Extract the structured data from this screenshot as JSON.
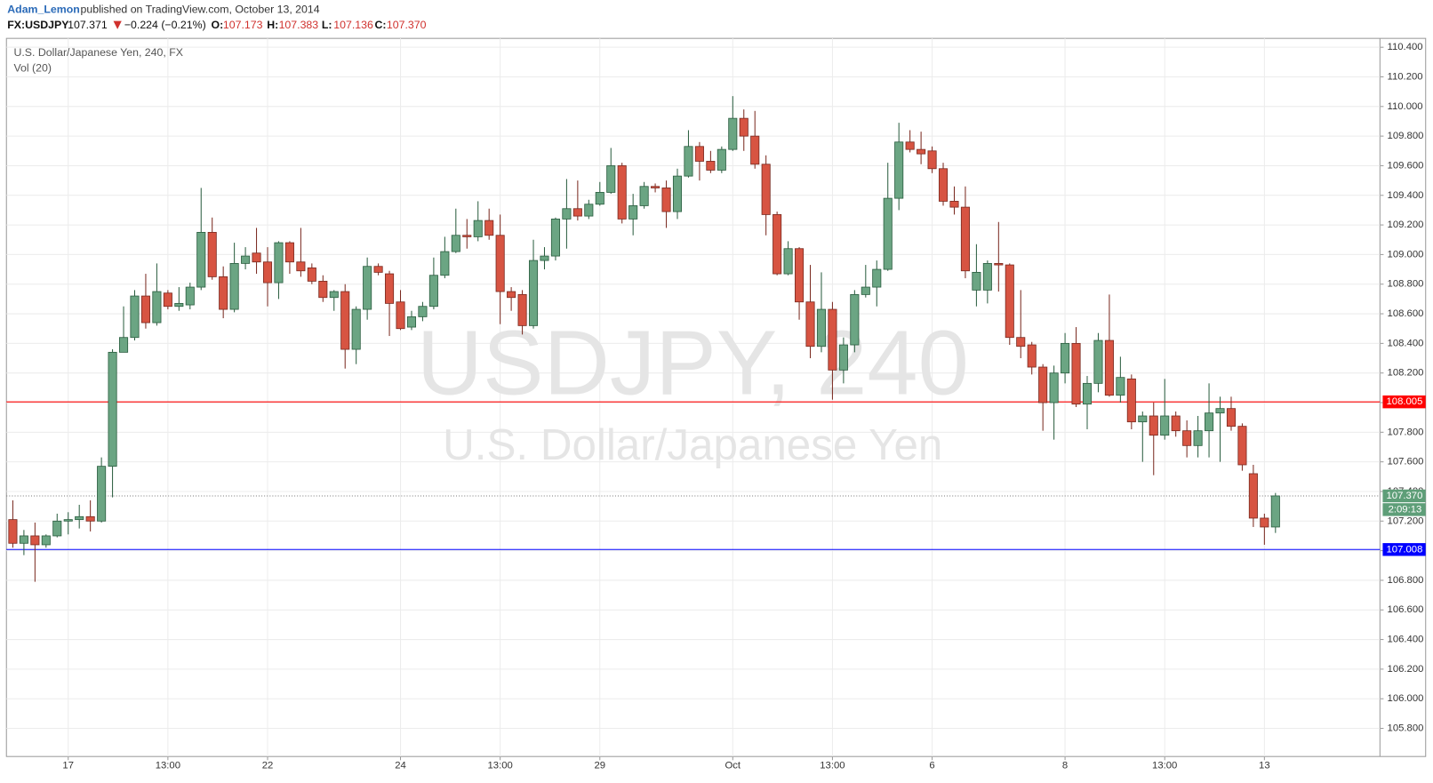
{
  "header": {
    "author": "Adam_Lemon",
    "published": "published on TradingView.com, October 13, 2014",
    "symbol": "FX:USDJPY",
    "last": "107.371",
    "change": "−0.224 (−0.21%)",
    "ohlc": [
      {
        "label": "O:",
        "value": "107.173"
      },
      {
        "label": "H:",
        "value": "107.383"
      },
      {
        "label": "L:",
        "value": "107.136"
      },
      {
        "label": "C:",
        "value": "107.370"
      }
    ]
  },
  "chart_data": {
    "type": "candlestick",
    "title": "U.S. Dollar/Japanese Yen, 240, FX",
    "indicator": "Vol (20)",
    "watermark": [
      "USDJPY, 240",
      "U.S. Dollar/Japanese Yen"
    ],
    "up_color": "#6ba583",
    "down_color": "#d75442",
    "grid": true,
    "categories": [
      null,
      null,
      null,
      null,
      null,
      "17",
      null,
      null,
      null,
      null,
      null,
      null,
      null,
      null,
      "13:00",
      null,
      null,
      null,
      null,
      null,
      null,
      null,
      null,
      "22",
      null,
      null,
      null,
      null,
      null,
      null,
      null,
      null,
      null,
      null,
      null,
      "24",
      null,
      null,
      null,
      null,
      null,
      null,
      null,
      null,
      "13:00",
      null,
      null,
      null,
      null,
      null,
      null,
      null,
      null,
      "29",
      null,
      null,
      null,
      null,
      null,
      null,
      null,
      null,
      null,
      null,
      null,
      "Oct",
      null,
      null,
      null,
      null,
      null,
      null,
      null,
      null,
      "13:00",
      null,
      null,
      null,
      null,
      null,
      null,
      null,
      null,
      "6",
      null,
      null,
      null,
      null,
      null,
      null,
      null,
      null,
      null,
      null,
      null,
      "8",
      null,
      null,
      null,
      null,
      null,
      null,
      null,
      null,
      "13:00",
      null,
      null,
      null,
      null,
      null,
      null,
      null,
      null,
      "13",
      null
    ],
    "open": [
      107.21,
      107.05,
      107.1,
      107.04,
      107.1,
      107.2,
      107.21,
      107.23,
      107.2,
      107.57,
      108.34,
      108.44,
      108.72,
      108.54,
      108.74,
      108.65,
      108.66,
      108.78,
      109.15,
      108.85,
      108.63,
      108.94,
      109.01,
      108.95,
      108.81,
      109.08,
      108.95,
      108.91,
      108.82,
      108.71,
      108.75,
      108.36,
      108.63,
      108.92,
      108.87,
      108.68,
      108.51,
      108.58,
      108.65,
      108.86,
      109.02,
      109.13,
      109.12,
      109.23,
      109.13,
      108.75,
      108.73,
      108.52,
      108.96,
      108.99,
      109.24,
      109.31,
      109.26,
      109.34,
      109.42,
      109.6,
      109.24,
      109.33,
      109.46,
      109.45,
      109.29,
      109.53,
      109.73,
      109.63,
      109.57,
      109.71,
      109.92,
      109.8,
      109.61,
      109.27,
      108.87,
      109.04,
      108.68,
      108.38,
      108.63,
      108.22,
      108.39,
      108.73,
      108.78,
      108.9,
      109.38,
      109.76,
      109.71,
      109.7,
      109.58,
      109.36,
      109.32,
      108.76,
      108.76,
      108.94,
      108.93,
      108.44,
      108.39,
      108.24,
      108.0,
      108.2,
      108.4,
      107.99,
      108.13,
      108.42,
      108.05,
      108.16,
      107.87,
      107.91,
      107.78,
      107.91,
      107.81,
      107.71,
      107.81,
      107.93,
      107.96,
      107.84,
      107.52,
      107.22,
      107.16
    ],
    "high": [
      107.34,
      107.14,
      107.19,
      107.11,
      107.25,
      107.26,
      107.31,
      107.34,
      107.63,
      108.36,
      108.65,
      108.76,
      108.87,
      108.94,
      108.76,
      108.78,
      108.81,
      109.45,
      109.25,
      108.92,
      109.08,
      109.05,
      109.18,
      109.05,
      109.09,
      109.09,
      109.18,
      108.94,
      108.86,
      108.76,
      108.8,
      108.65,
      108.98,
      108.94,
      108.89,
      108.76,
      108.62,
      108.68,
      108.98,
      109.12,
      109.31,
      109.24,
      109.36,
      109.31,
      109.27,
      108.78,
      108.76,
      109.1,
      109.05,
      109.25,
      109.51,
      109.5,
      109.37,
      109.49,
      109.72,
      109.62,
      109.41,
      109.49,
      109.48,
      109.5,
      109.58,
      109.84,
      109.76,
      109.7,
      109.73,
      110.07,
      109.98,
      109.97,
      109.67,
      109.29,
      109.09,
      109.05,
      108.93,
      108.88,
      108.68,
      108.44,
      108.76,
      108.93,
      108.96,
      109.62,
      109.89,
      109.84,
      109.83,
      109.73,
      109.62,
      109.46,
      109.46,
      109.07,
      108.96,
      109.22,
      108.94,
      108.76,
      108.41,
      108.26,
      108.25,
      108.47,
      108.51,
      108.18,
      108.47,
      108.73,
      108.31,
      108.19,
      107.94,
      108.0,
      108.16,
      107.94,
      107.88,
      107.91,
      108.13,
      108.04,
      108.04,
      107.86,
      107.58,
      107.25,
      107.39
    ],
    "low": [
      107.02,
      106.97,
      106.79,
      107.02,
      107.09,
      107.11,
      107.15,
      107.13,
      107.19,
      107.36,
      108.34,
      108.42,
      108.5,
      108.52,
      108.63,
      108.62,
      108.63,
      108.76,
      108.83,
      108.57,
      108.61,
      108.9,
      108.87,
      108.65,
      108.7,
      108.87,
      108.85,
      108.8,
      108.68,
      108.62,
      108.23,
      108.26,
      108.56,
      108.86,
      108.45,
      108.49,
      108.49,
      108.55,
      108.63,
      108.84,
      109.01,
      109.04,
      109.09,
      109.1,
      108.53,
      108.62,
      108.46,
      108.5,
      108.9,
      108.96,
      109.04,
      109.23,
      109.24,
      109.33,
      109.41,
      109.21,
      109.13,
      109.31,
      109.42,
      109.18,
      109.24,
      109.52,
      109.5,
      109.55,
      109.55,
      109.7,
      109.7,
      109.58,
      109.13,
      108.86,
      108.86,
      108.56,
      108.3,
      108.34,
      108.02,
      108.13,
      108.34,
      108.71,
      108.65,
      108.89,
      109.3,
      109.69,
      109.61,
      109.55,
      109.33,
      109.27,
      108.84,
      108.65,
      108.67,
      108.75,
      108.39,
      108.3,
      108.19,
      107.81,
      107.75,
      108.13,
      107.97,
      107.82,
      108.07,
      108.04,
      108.0,
      107.82,
      107.6,
      107.51,
      107.75,
      107.77,
      107.63,
      107.63,
      107.63,
      107.6,
      107.81,
      107.54,
      107.16,
      107.04,
      107.12
    ],
    "close": [
      107.05,
      107.1,
      107.04,
      107.1,
      107.2,
      107.21,
      107.23,
      107.2,
      107.57,
      108.34,
      108.44,
      108.72,
      108.54,
      108.75,
      108.65,
      108.67,
      108.78,
      109.15,
      108.85,
      108.63,
      108.94,
      108.99,
      108.95,
      108.81,
      109.08,
      108.95,
      108.89,
      108.82,
      108.71,
      108.75,
      108.36,
      108.63,
      108.92,
      108.88,
      108.67,
      108.5,
      108.58,
      108.65,
      108.86,
      109.02,
      109.13,
      109.12,
      109.23,
      109.13,
      108.75,
      108.71,
      108.52,
      108.96,
      108.99,
      109.24,
      109.31,
      109.26,
      109.34,
      109.42,
      109.6,
      109.24,
      109.33,
      109.46,
      109.45,
      109.29,
      109.53,
      109.73,
      109.63,
      109.57,
      109.71,
      109.92,
      109.8,
      109.61,
      109.27,
      108.87,
      109.04,
      108.68,
      108.38,
      108.63,
      108.22,
      108.39,
      108.73,
      108.78,
      108.9,
      109.38,
      109.76,
      109.71,
      109.68,
      109.58,
      109.36,
      109.32,
      108.89,
      108.88,
      108.94,
      108.93,
      108.44,
      108.38,
      108.24,
      108.0,
      108.2,
      108.4,
      107.99,
      108.13,
      108.42,
      108.05,
      108.17,
      107.87,
      107.91,
      107.78,
      107.91,
      107.81,
      107.71,
      107.81,
      107.93,
      107.96,
      107.84,
      107.58,
      107.22,
      107.16,
      107.37
    ],
    "ylim": [
      105.61,
      110.46
    ],
    "yticks": [
      {
        "value": 105.8,
        "label": "105.800"
      },
      {
        "value": 106.0,
        "label": "106.000"
      },
      {
        "value": 106.2,
        "label": "106.200"
      },
      {
        "value": 106.4,
        "label": "106.400"
      },
      {
        "value": 106.6,
        "label": "106.600"
      },
      {
        "value": 106.8,
        "label": "106.800"
      },
      {
        "value": 107.0,
        "label": "107.000"
      },
      {
        "value": 107.2,
        "label": "107.200"
      },
      {
        "value": 107.4,
        "label": "107.400"
      },
      {
        "value": 107.6,
        "label": "107.600"
      },
      {
        "value": 107.8,
        "label": "107.800"
      },
      {
        "value": 108.0,
        "label": "108.000"
      },
      {
        "value": 108.2,
        "label": "108.200"
      },
      {
        "value": 108.4,
        "label": "108.400"
      },
      {
        "value": 108.6,
        "label": "108.600"
      },
      {
        "value": 108.8,
        "label": "108.800"
      },
      {
        "value": 109.0,
        "label": "109.000"
      },
      {
        "value": 109.2,
        "label": "109.200"
      },
      {
        "value": 109.4,
        "label": "109.400"
      },
      {
        "value": 109.6,
        "label": "109.600"
      },
      {
        "value": 109.8,
        "label": "109.800"
      },
      {
        "value": 110.0,
        "label": "110.000"
      },
      {
        "value": 110.2,
        "label": "110.200"
      },
      {
        "value": 110.4,
        "label": "110.400"
      }
    ],
    "price_lines": [
      {
        "value": 108.005,
        "color": "#ff0000",
        "style": "solid"
      },
      {
        "value": 107.008,
        "color": "#0000ff",
        "style": "solid"
      },
      {
        "value": 107.37,
        "label": "107.370",
        "color": "#5e9e78",
        "style": "dotted",
        "countdown": "2:09:13"
      }
    ]
  }
}
